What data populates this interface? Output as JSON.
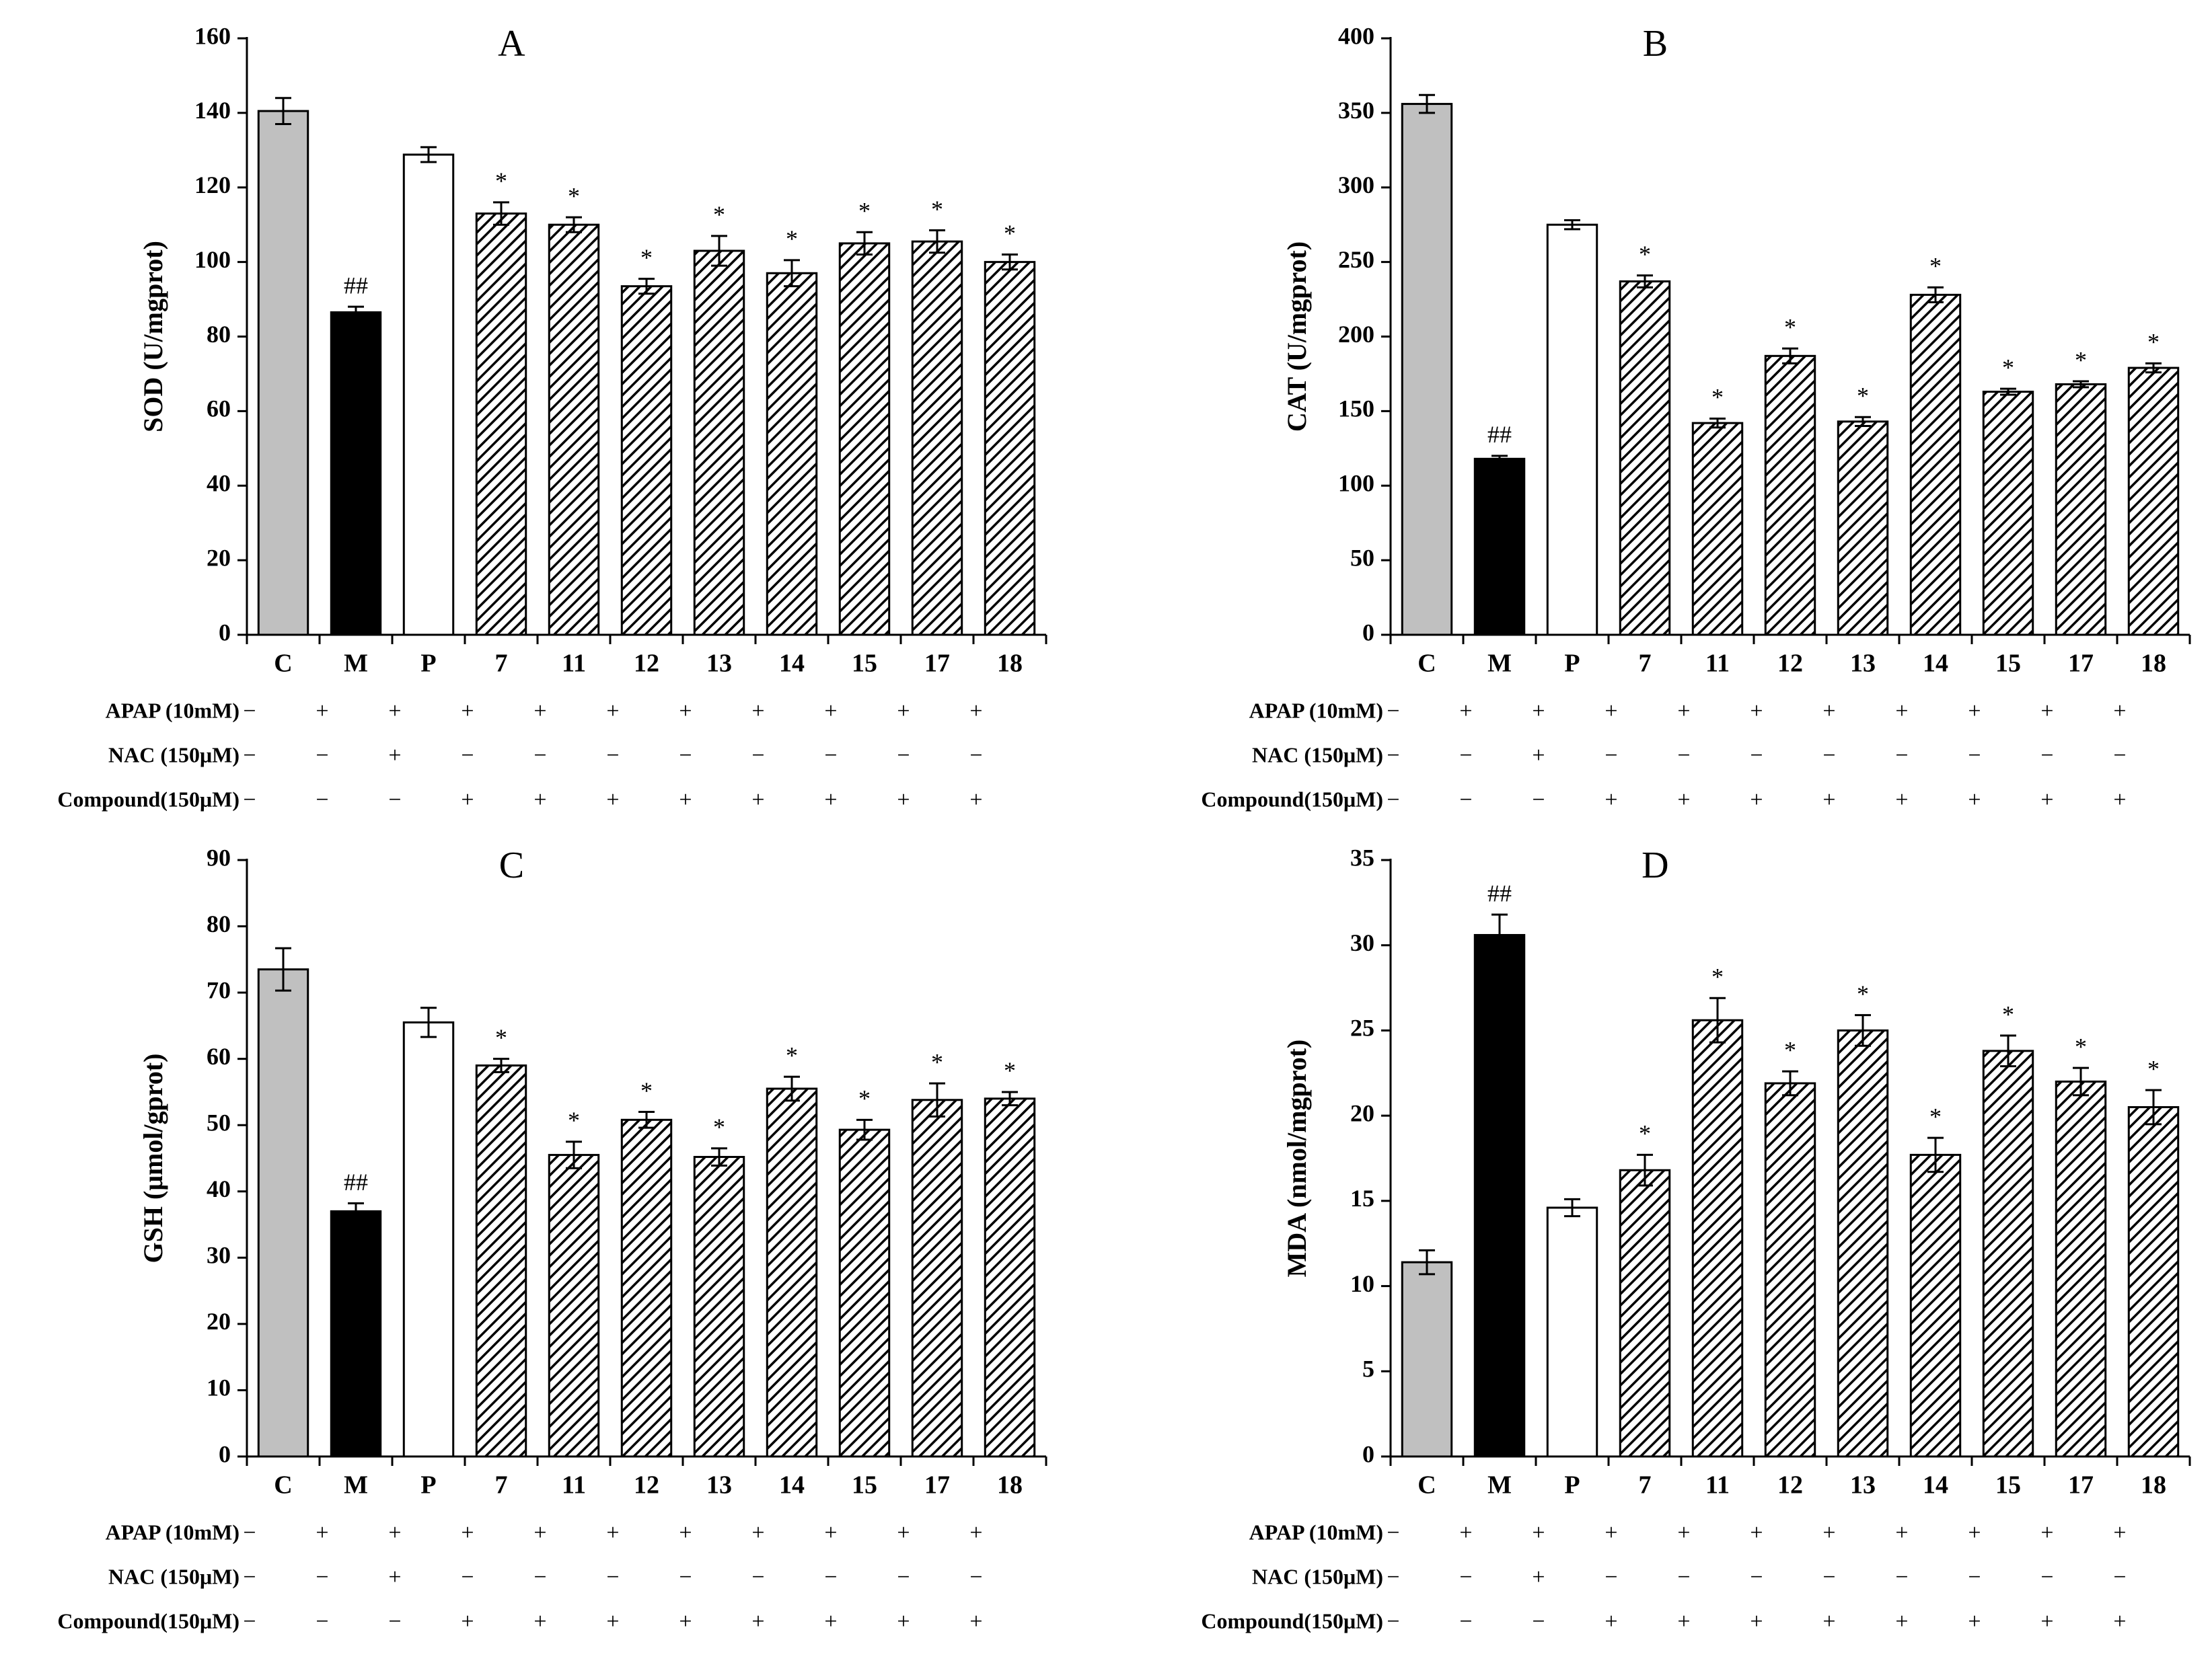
{
  "chart_data": [
    {
      "type": "bar",
      "title": "A",
      "ylabel": "SOD (U/mgprot)",
      "categories": [
        "C",
        "M",
        "P",
        "7",
        "11",
        "12",
        "13",
        "14",
        "15",
        "17",
        "18"
      ],
      "values": [
        140.5,
        86.5,
        128.8,
        113,
        110,
        93.5,
        103,
        97,
        105,
        105.5,
        100
      ],
      "errors": [
        3.5,
        1.5,
        2,
        3,
        2,
        2,
        4,
        3.5,
        3,
        3,
        2
      ],
      "annotations": [
        null,
        "##",
        null,
        "*",
        "*",
        "*",
        "*",
        "*",
        "*",
        "*",
        "*"
      ],
      "fills": [
        "#c0c0c0",
        "#000000",
        "#ffffff",
        "hatch",
        "hatch",
        "hatch",
        "hatch",
        "hatch",
        "hatch",
        "hatch",
        "hatch"
      ],
      "ylim": [
        0,
        160
      ],
      "yticks": [
        0,
        20,
        40,
        60,
        80,
        100,
        120,
        140,
        160
      ],
      "treatments": [
        {
          "label": "APAP (10mM)",
          "signs": [
            "−",
            "+",
            "+",
            "+",
            "+",
            "+",
            "+",
            "+",
            "+",
            "+",
            "+"
          ]
        },
        {
          "label": "NAC  (150μM)",
          "signs": [
            "−",
            "−",
            "+",
            "−",
            "−",
            "−",
            "−",
            "−",
            "−",
            "−",
            "−"
          ]
        },
        {
          "label": "Compound(150μM)",
          "signs": [
            "−",
            "−",
            "−",
            "+",
            "+",
            "+",
            "+",
            "+",
            "+",
            "+",
            "+"
          ]
        }
      ]
    },
    {
      "type": "bar",
      "title": "B",
      "ylabel": "CAT (U/mgprot)",
      "categories": [
        "C",
        "M",
        "P",
        "7",
        "11",
        "12",
        "13",
        "14",
        "15",
        "17",
        "18"
      ],
      "values": [
        356,
        118,
        275,
        237,
        142,
        187,
        143,
        228,
        163,
        168,
        179
      ],
      "errors": [
        6,
        2,
        3,
        4,
        3,
        5,
        3,
        5,
        2,
        2,
        3
      ],
      "annotations": [
        null,
        "##",
        null,
        "*",
        "*",
        "*",
        "*",
        "*",
        "*",
        "*",
        "*"
      ],
      "fills": [
        "#c0c0c0",
        "#000000",
        "#ffffff",
        "hatch",
        "hatch",
        "hatch",
        "hatch",
        "hatch",
        "hatch",
        "hatch",
        "hatch"
      ],
      "ylim": [
        0,
        400
      ],
      "yticks": [
        0,
        50,
        100,
        150,
        200,
        250,
        300,
        350,
        400
      ],
      "treatments": [
        {
          "label": "APAP (10mM)",
          "signs": [
            "−",
            "+",
            "+",
            "+",
            "+",
            "+",
            "+",
            "+",
            "+",
            "+",
            "+"
          ]
        },
        {
          "label": "NAC  (150μM)",
          "signs": [
            "−",
            "−",
            "+",
            "−",
            "−",
            "−",
            "−",
            "−",
            "−",
            "−",
            "−"
          ]
        },
        {
          "label": "Compound(150μM)",
          "signs": [
            "−",
            "−",
            "−",
            "+",
            "+",
            "+",
            "+",
            "+",
            "+",
            "+",
            "+"
          ]
        }
      ]
    },
    {
      "type": "bar",
      "title": "C",
      "ylabel": "GSH (μmol/gprot)",
      "categories": [
        "C",
        "M",
        "P",
        "7",
        "11",
        "12",
        "13",
        "14",
        "15",
        "17",
        "18"
      ],
      "values": [
        73.5,
        37,
        65.5,
        59,
        45.5,
        50.8,
        45.2,
        55.5,
        49.3,
        53.8,
        54
      ],
      "errors": [
        3.2,
        1.2,
        2.2,
        1,
        2,
        1.2,
        1.3,
        1.8,
        1.5,
        2.5,
        1
      ],
      "annotations": [
        null,
        "##",
        null,
        "*",
        "*",
        "*",
        "*",
        "*",
        "*",
        "*",
        "*"
      ],
      "fills": [
        "#c0c0c0",
        "#000000",
        "#ffffff",
        "hatch",
        "hatch",
        "hatch",
        "hatch",
        "hatch",
        "hatch",
        "hatch",
        "hatch"
      ],
      "ylim": [
        0,
        90
      ],
      "yticks": [
        0,
        10,
        20,
        30,
        40,
        50,
        60,
        70,
        80,
        90
      ],
      "treatments": [
        {
          "label": "APAP (10mM)",
          "signs": [
            "−",
            "+",
            "+",
            "+",
            "+",
            "+",
            "+",
            "+",
            "+",
            "+",
            "+"
          ]
        },
        {
          "label": "NAC  (150μM)",
          "signs": [
            "−",
            "−",
            "+",
            "−",
            "−",
            "−",
            "−",
            "−",
            "−",
            "−",
            "−"
          ]
        },
        {
          "label": "Compound(150μM)",
          "signs": [
            "−",
            "−",
            "−",
            "+",
            "+",
            "+",
            "+",
            "+",
            "+",
            "+",
            "+"
          ]
        }
      ]
    },
    {
      "type": "bar",
      "title": "D",
      "ylabel": "MDA (nmol/mgprot)",
      "categories": [
        "C",
        "M",
        "P",
        "7",
        "11",
        "12",
        "13",
        "14",
        "15",
        "17",
        "18"
      ],
      "values": [
        11.4,
        30.6,
        14.6,
        16.8,
        25.6,
        21.9,
        25,
        17.7,
        23.8,
        22,
        20.5
      ],
      "errors": [
        0.7,
        1.2,
        0.5,
        0.9,
        1.3,
        0.7,
        0.9,
        1,
        0.9,
        0.8,
        1
      ],
      "annotations": [
        null,
        "##",
        null,
        "*",
        "*",
        "*",
        "*",
        "*",
        "*",
        "*",
        "*"
      ],
      "fills": [
        "#c0c0c0",
        "#000000",
        "#ffffff",
        "hatch",
        "hatch",
        "hatch",
        "hatch",
        "hatch",
        "hatch",
        "hatch",
        "hatch"
      ],
      "ylim": [
        0,
        35
      ],
      "yticks": [
        0,
        5,
        10,
        15,
        20,
        25,
        30,
        35
      ],
      "treatments": [
        {
          "label": "APAP (10mM)",
          "signs": [
            "−",
            "+",
            "+",
            "+",
            "+",
            "+",
            "+",
            "+",
            "+",
            "+",
            "+"
          ]
        },
        {
          "label": "NAC  (150μM)",
          "signs": [
            "−",
            "−",
            "+",
            "−",
            "−",
            "−",
            "−",
            "−",
            "−",
            "−",
            "−"
          ]
        },
        {
          "label": "Compound(150μM)",
          "signs": [
            "−",
            "−",
            "−",
            "+",
            "+",
            "+",
            "+",
            "+",
            "+",
            "+",
            "+"
          ]
        }
      ]
    }
  ]
}
